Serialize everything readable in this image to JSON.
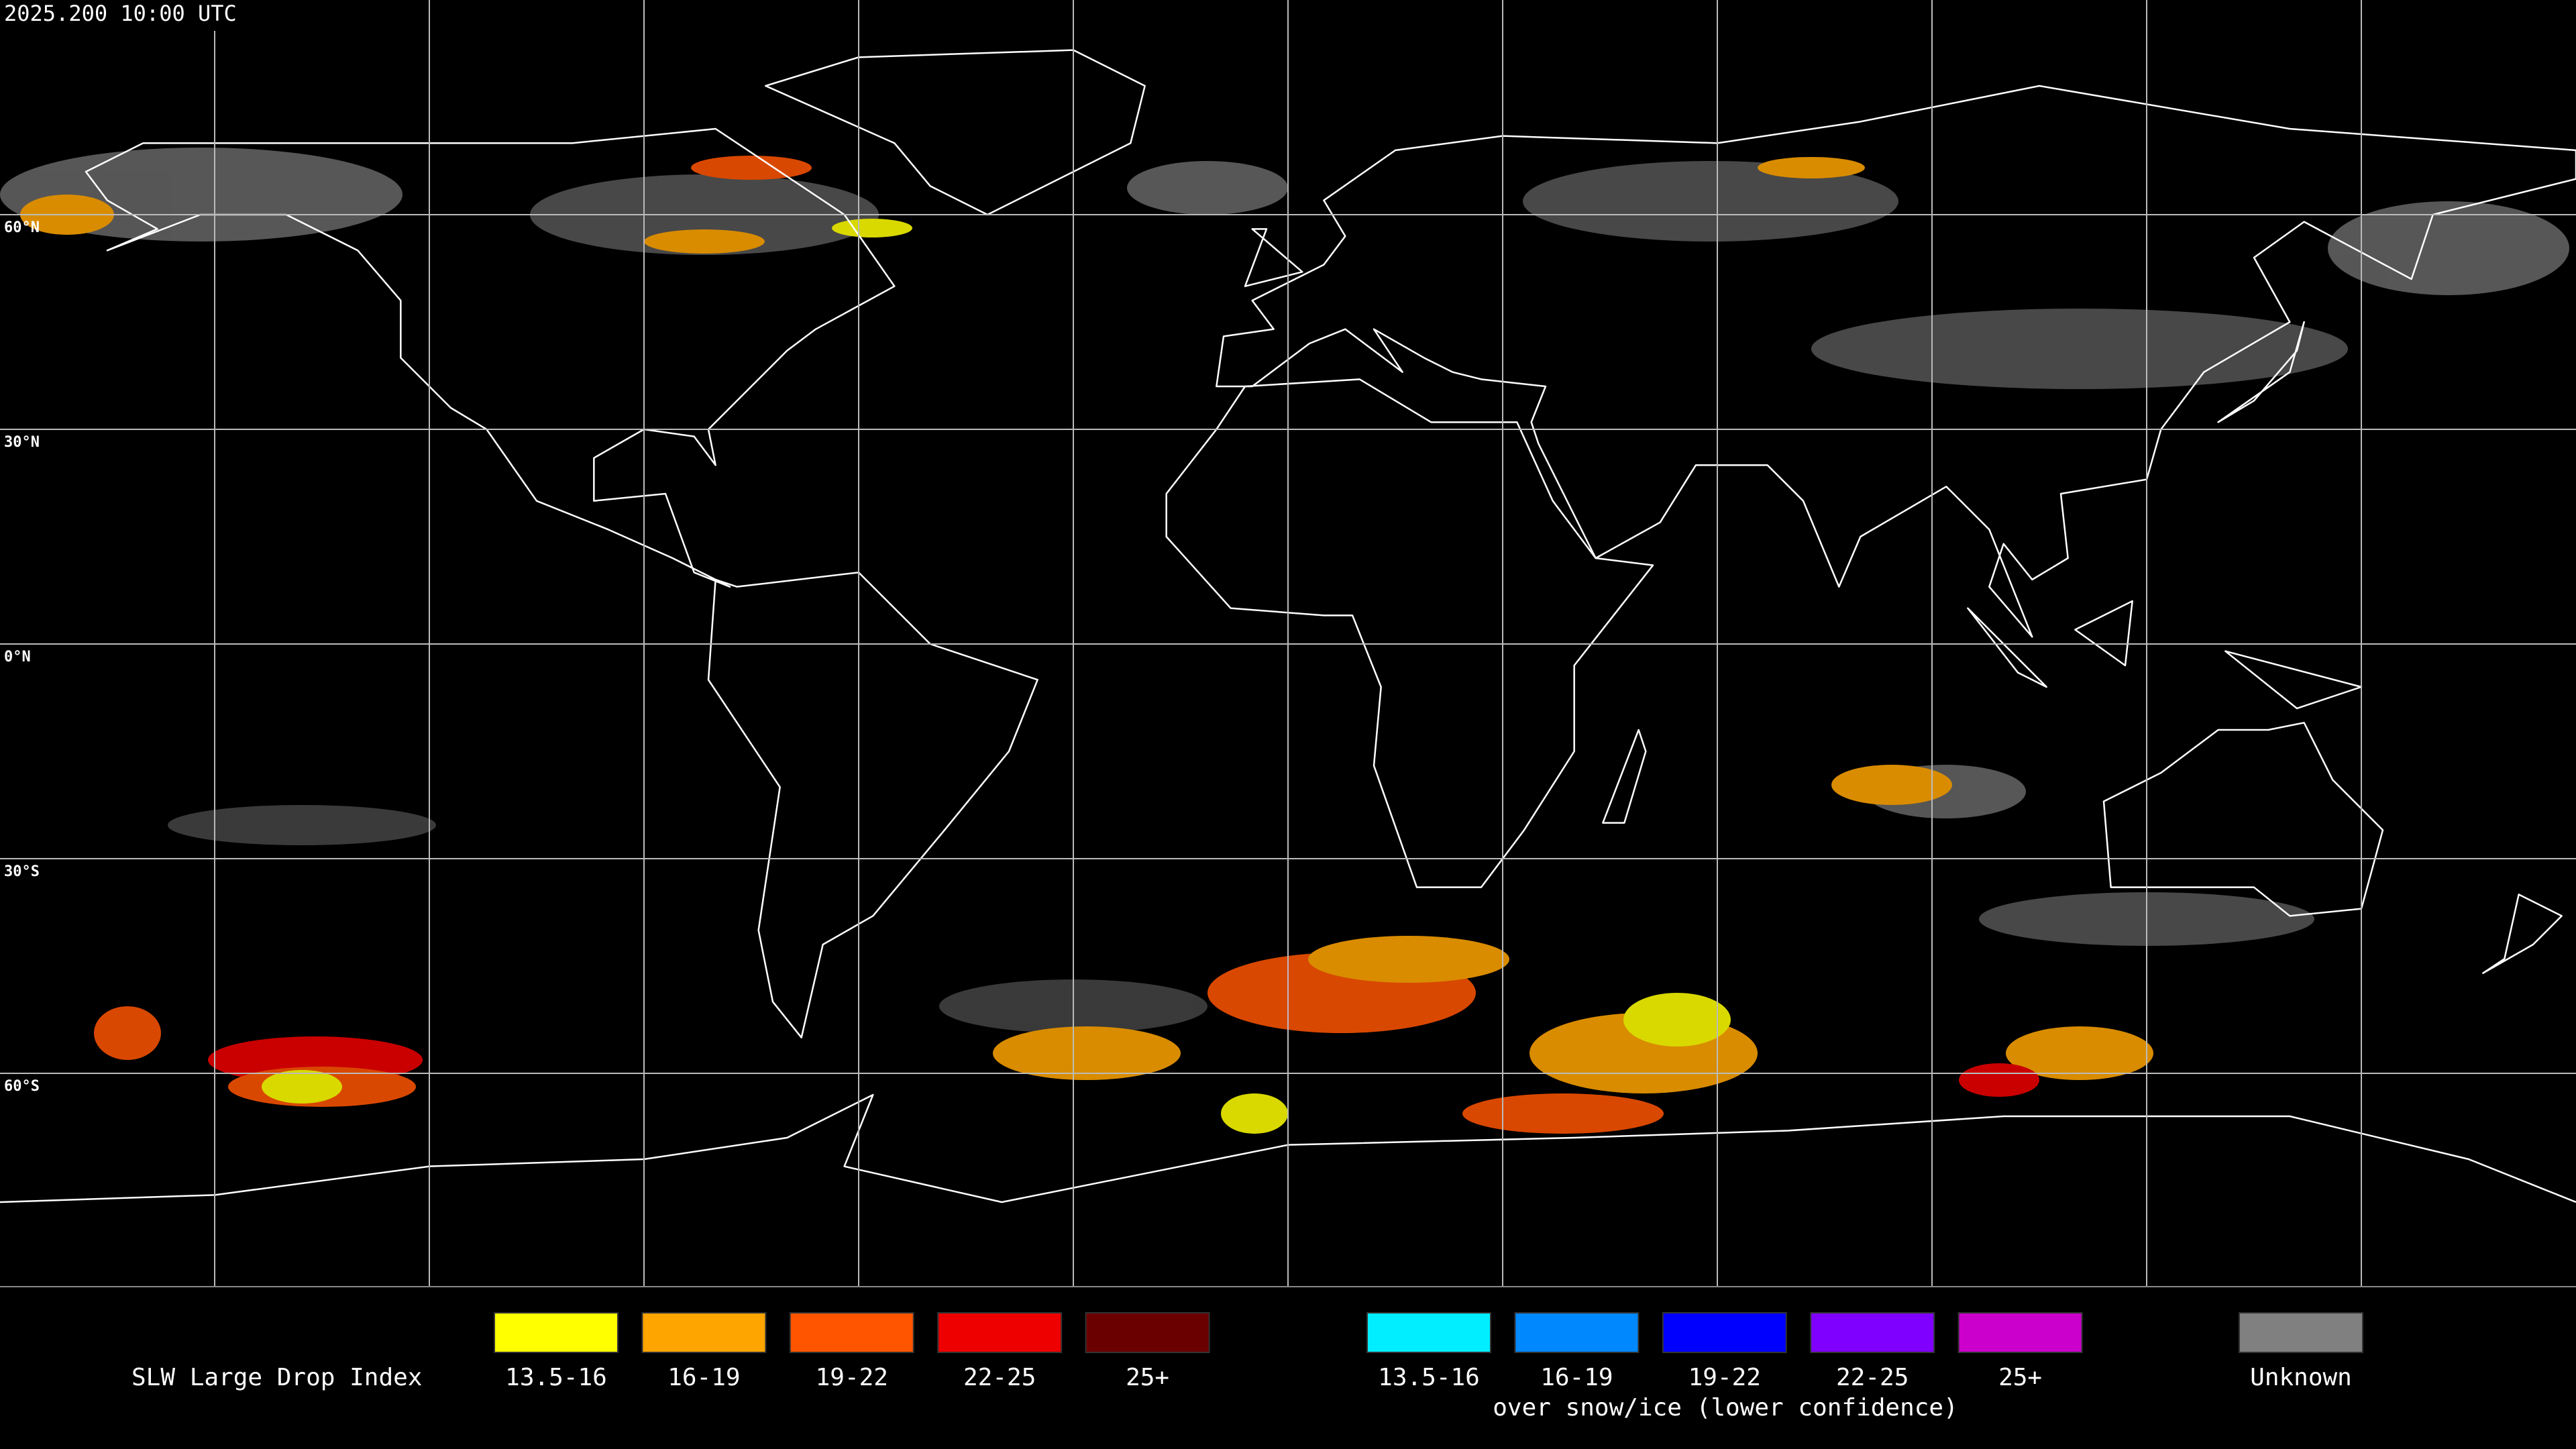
{
  "header": {
    "timestamp": "2025.200 10:00 UTC"
  },
  "map": {
    "latitude_labels": [
      "60°N",
      "30°N",
      "0°N",
      "30°S",
      "60°S"
    ]
  },
  "legend": {
    "title": "SLW Large Drop Index",
    "items": [
      {
        "label": "13.5-16",
        "color": "#ffff00"
      },
      {
        "label": "16-19",
        "color": "#ffa500"
      },
      {
        "label": "19-22",
        "color": "#ff5500"
      },
      {
        "label": "22-25",
        "color": "#ee0000"
      },
      {
        "label": "25+",
        "color": "#6b0000"
      }
    ],
    "snow_ice_items": [
      {
        "label": "13.5-16",
        "color": "#00eeff"
      },
      {
        "label": "16-19",
        "color": "#0088ff"
      },
      {
        "label": "19-22",
        "color": "#0000ff"
      },
      {
        "label": "22-25",
        "color": "#8000ff"
      },
      {
        "label": "25+",
        "color": "#cc00cc"
      }
    ],
    "snow_ice_note": "over snow/ice (lower confidence)",
    "unknown": {
      "label": "Unknown",
      "color": "#808080"
    }
  }
}
